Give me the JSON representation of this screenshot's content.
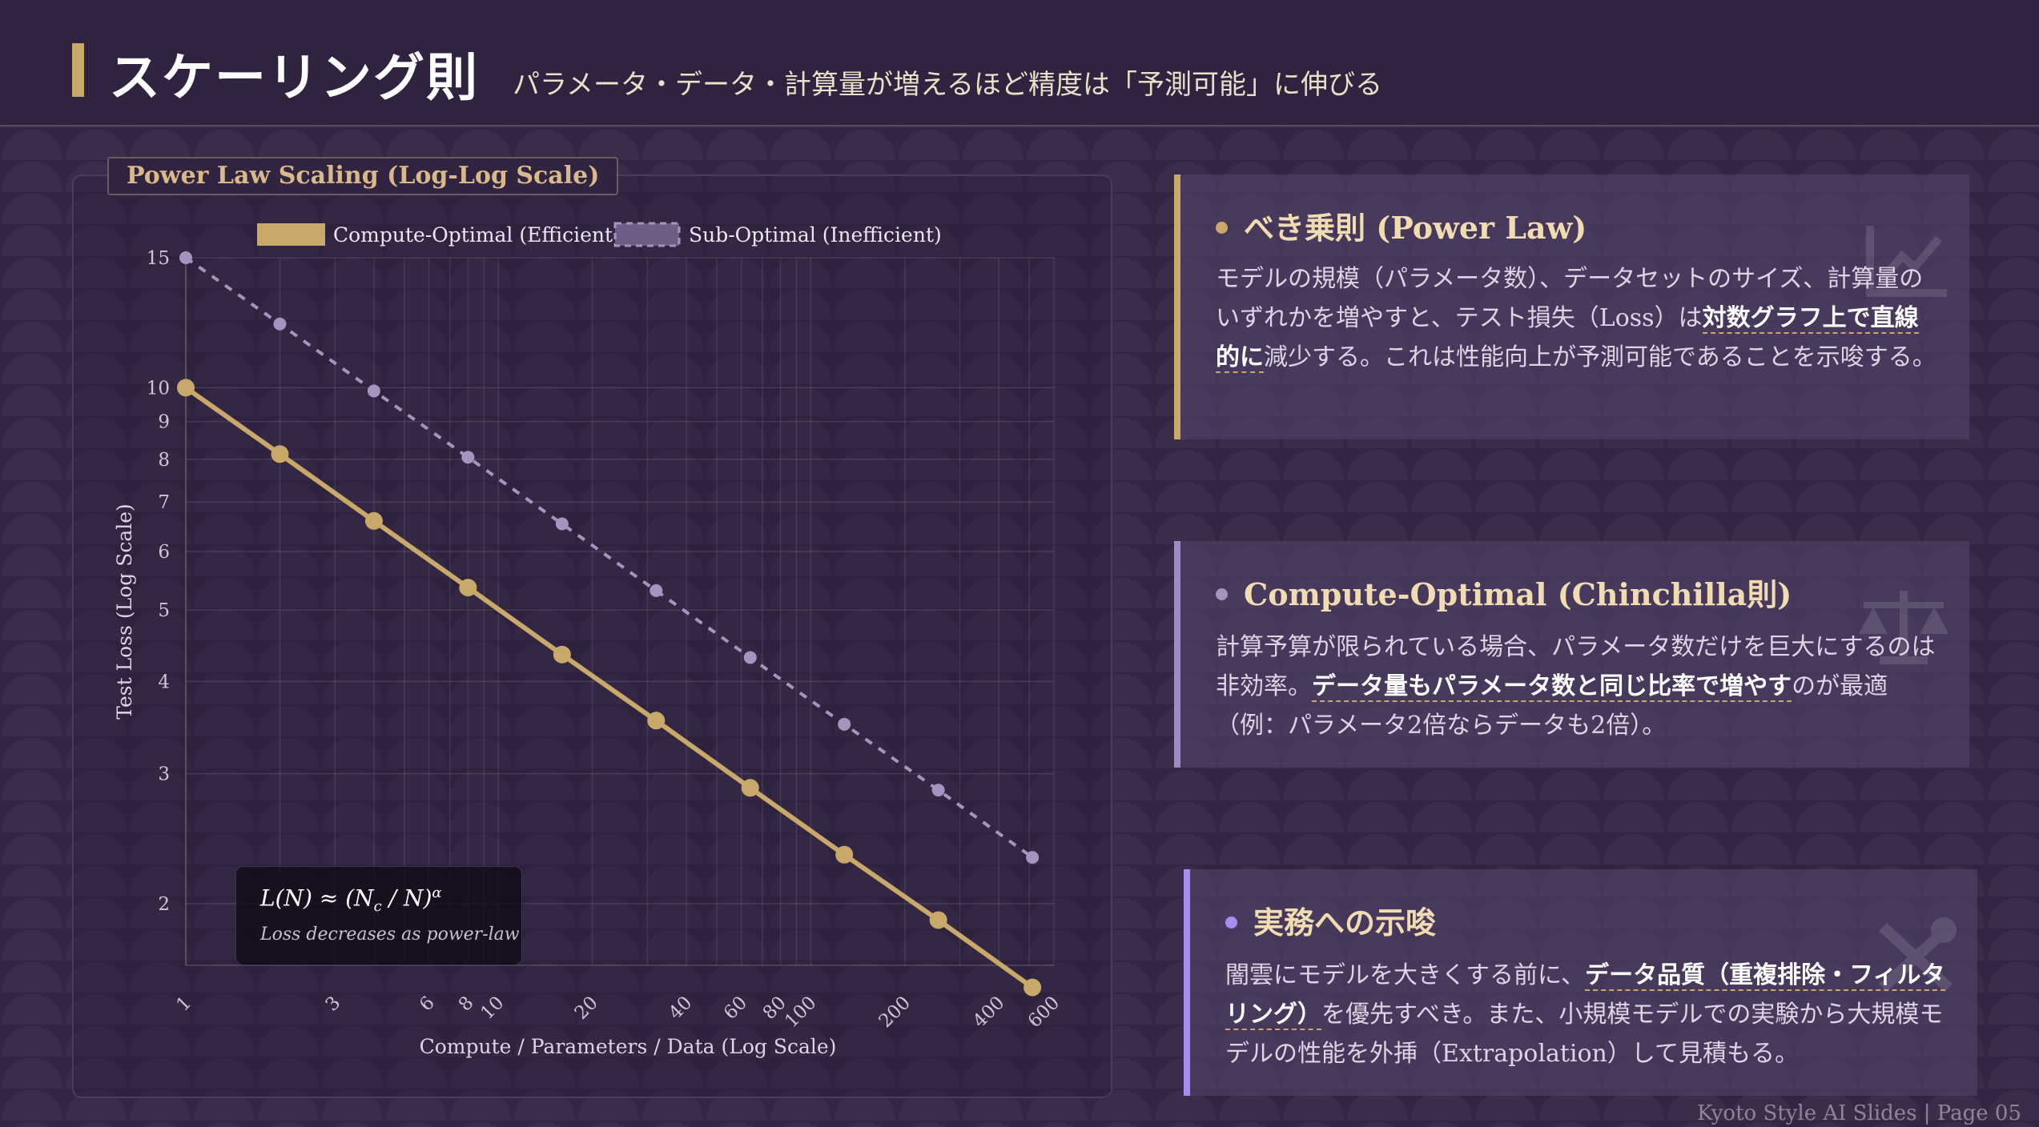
{
  "header": {
    "title": "スケーリング則",
    "subtitle": "パラメータ・データ・計算量が増えるほど精度は「予測可能」に伸びる"
  },
  "chart_panel": {
    "tag": "Power Law Scaling (Log-Log Scale)",
    "formula": {
      "lhs": "L(N) ≈ (N",
      "sub": "c",
      "mid": " / N)",
      "sup": "α",
      "caption": "Loss decreases as power-law"
    }
  },
  "colors": {
    "gold": "#c9a96a",
    "lavender": "#a594bf",
    "violet": "#a58ef0",
    "background": "#322543"
  },
  "chart_data": {
    "type": "line",
    "title": "",
    "xlabel": "Compute / Parameters / Data (Log Scale)",
    "ylabel": "Test Loss (Log Scale)",
    "xscale": "log",
    "yscale": "log",
    "xlim": [
      1,
      600
    ],
    "ylim": [
      1.65,
      15
    ],
    "x_ticks": [
      1,
      3,
      6,
      8,
      10,
      20,
      40,
      60,
      80,
      100,
      200,
      400,
      600
    ],
    "y_ticks": [
      2,
      3,
      4,
      5,
      6,
      7,
      8,
      9,
      10,
      15
    ],
    "grid": true,
    "legend_position": "top",
    "x": [
      1,
      2,
      4,
      8,
      16,
      32,
      64,
      128,
      256,
      512
    ],
    "series": [
      {
        "name": "Compute-Optimal (Efficient)",
        "style": "solid",
        "color": "#c9a96a",
        "values": [
          10.0,
          8.13,
          6.6,
          5.36,
          4.35,
          3.54,
          2.87,
          2.33,
          1.9,
          1.54
        ]
      },
      {
        "name": "Sub-Optimal (Inefficient)",
        "style": "dashed",
        "color": "#a594bf",
        "values": [
          15.0,
          12.2,
          9.9,
          8.05,
          6.54,
          5.31,
          4.31,
          3.5,
          2.85,
          2.31
        ]
      }
    ]
  },
  "cards": [
    {
      "heading": "べき乗則 (Power Law)",
      "text_1": "モデルの規模（パラメータ数）、データセットのサイズ、計算量のいずれかを増やすと、テスト損失（Loss）は",
      "highlight": "対数グラフ上で直線的に",
      "text_2": "減少する。これは性能向上が予測可能であることを示唆する。",
      "icon": "chart-line-icon"
    },
    {
      "heading": "Compute-Optimal (Chinchilla則)",
      "text_1": "計算予算が限られている場合、パラメータ数だけを巨大にするのは非効率。",
      "highlight": "データ量もパラメータ数と同じ比率で増やす",
      "text_2": "のが最適（例：パラメータ2倍ならデータも2倍）。",
      "icon": "balance-scale-icon"
    },
    {
      "heading": "実務への示唆",
      "text_1": "闇雲にモデルを大きくする前に、",
      "highlight": "データ品質（重複排除・フィルタリング）",
      "text_2": "を優先すべき。また、小規模モデルでの実験から大規模モデルの性能を外挿（Extrapolation）して見積もる。",
      "icon": "tools-icon"
    }
  ],
  "footer": "Kyoto Style AI Slides | Page 05"
}
